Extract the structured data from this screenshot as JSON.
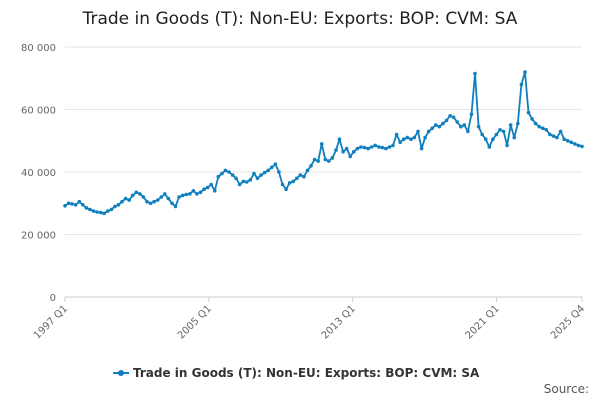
{
  "chart_data": {
    "type": "line",
    "title": "Trade in Goods (T): Non-EU: Exports: BOP: CVM: SA",
    "xlabel": "",
    "ylabel": "",
    "x_start": "1997 Q1",
    "x_end": "2025 Q4",
    "x_tick_labels": [
      "1997 Q1",
      "2005 Q1",
      "2013 Q1",
      "2021 Q1",
      "2025 Q4"
    ],
    "ylim": [
      0,
      80000
    ],
    "y_ticks": [
      0,
      20000,
      40000,
      60000,
      80000
    ],
    "y_tick_labels": [
      "0",
      "20 000",
      "40 000",
      "60 000",
      "80 000"
    ],
    "grid": true,
    "legend_position": "bottom",
    "series": [
      {
        "name": "Trade in Goods (T): Non-EU: Exports: BOP: CVM: SA",
        "color": "#0f7fbf",
        "values": [
          29200,
          30000,
          29800,
          29500,
          30500,
          29500,
          28500,
          28000,
          27500,
          27200,
          27000,
          26800,
          27500,
          28000,
          29000,
          29500,
          30500,
          31500,
          31000,
          32500,
          33500,
          33000,
          32000,
          30500,
          30000,
          30500,
          31000,
          32000,
          33000,
          31500,
          30000,
          29000,
          32000,
          32500,
          32800,
          33000,
          34000,
          33000,
          33500,
          34500,
          35000,
          36000,
          34000,
          38500,
          39500,
          40500,
          40000,
          39000,
          38000,
          36000,
          37000,
          36800,
          37500,
          39500,
          38000,
          39000,
          39800,
          40500,
          41500,
          42500,
          40000,
          36000,
          34500,
          36500,
          37000,
          38000,
          39000,
          38500,
          40500,
          42000,
          44000,
          43500,
          49000,
          44000,
          43500,
          44500,
          47000,
          50500,
          46500,
          47500,
          45000,
          46500,
          47500,
          48000,
          47800,
          47500,
          48000,
          48500,
          48000,
          47800,
          47500,
          48000,
          48500,
          52000,
          49500,
          50500,
          51000,
          50500,
          51000,
          53000,
          47500,
          51000,
          53000,
          54000,
          55000,
          54500,
          55500,
          56500,
          58000,
          57500,
          56000,
          54500,
          55000,
          53000,
          58500,
          71500,
          54500,
          52000,
          50500,
          48000,
          50500,
          52000,
          53500,
          53000,
          48500,
          55000,
          51000,
          55500,
          68000,
          72000,
          59000,
          57000,
          55500,
          54500,
          54000,
          53500,
          52000,
          51500,
          51000,
          53000,
          50500,
          50000,
          49500,
          49000,
          48500,
          48200
        ]
      }
    ]
  },
  "legend": {
    "label": "Trade in Goods (T): Non-EU: Exports: BOP: CVM: SA"
  },
  "credit": {
    "label": "Source:"
  }
}
